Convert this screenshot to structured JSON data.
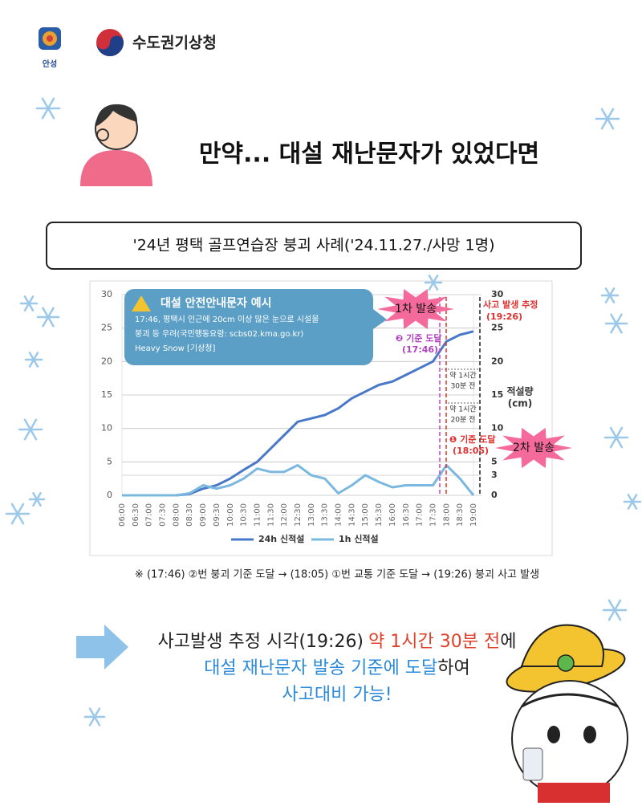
{
  "header": {
    "city_logo": "안성",
    "agency": "수도권기상청"
  },
  "title": "만약... 대설 재난문자가 있었다면",
  "case_title": "'24년 평택 골프연습장 붕괴 사례('24.11.27./사망 1명)",
  "chart_data": {
    "type": "line",
    "categories": [
      "06:00",
      "06:30",
      "07:00",
      "07:30",
      "08:00",
      "08:30",
      "09:00",
      "09:30",
      "10:00",
      "10:30",
      "11:00",
      "11:30",
      "12:00",
      "12:30",
      "13:00",
      "13:30",
      "14:00",
      "14:30",
      "15:00",
      "15:30",
      "16:00",
      "16:30",
      "17:00",
      "17:30",
      "18:00",
      "18:30",
      "19:00"
    ],
    "series": [
      {
        "name": "24h 신적설",
        "color": "#4a78c8",
        "values": [
          0,
          0,
          0,
          0,
          0,
          0.2,
          1,
          1.5,
          2.5,
          3.8,
          5,
          7,
          9,
          11,
          11.5,
          12,
          13,
          14.5,
          15.5,
          16.5,
          17,
          18,
          19,
          20,
          23,
          24,
          24.5
        ]
      },
      {
        "name": "1h 신적설",
        "color": "#7ab8e0",
        "values": [
          0,
          0,
          0,
          0,
          0,
          0.3,
          1.5,
          1,
          1.5,
          2.5,
          4,
          3.5,
          3.5,
          4.5,
          3,
          2.5,
          0.3,
          1.5,
          3,
          2,
          1.2,
          1.5,
          1.5,
          1.5,
          4.5,
          2.5,
          0
        ]
      }
    ],
    "ylim": [
      0,
      30
    ],
    "yticks": [
      0,
      5,
      10,
      15,
      20,
      25,
      30
    ],
    "y2lim": [
      0,
      30
    ],
    "y2ticks": [
      0,
      3,
      5,
      10,
      15,
      20,
      25,
      30
    ],
    "y2_label": [
      "적설량",
      "(cm)"
    ],
    "grid": true,
    "legend": "bottom",
    "alert_box": {
      "title": "대설 안전안내문자 예시",
      "lines": [
        "17:46, 평택시 인근에 20cm 이상 많은 눈으로 시설물",
        "붕괴 등 우려(국민행동요령: scbs02.kma.go.kr)",
        "Heavy Snow [기상청]"
      ]
    },
    "annotations": {
      "send_1": "1차 발송",
      "send_2": "2차 발송",
      "threshold_2": [
        "❷ 기준 도달",
        "(17:46)"
      ],
      "threshold_1": [
        "❶ 기준 도달",
        "(18:05)"
      ],
      "accident": [
        "사고 발생 추정",
        "(19:26)"
      ],
      "gap_1": [
        "약 1시간",
        "30분 전"
      ],
      "gap_2": [
        "약 1시간",
        "20분 전"
      ]
    }
  },
  "footnote": "※ (17:46) ②번 붕괴 기준 도달 → (18:05) ①번 교통 기준 도달 → (19:26) 붕괴 사고 발생",
  "conclusion": [
    [
      {
        "text": "사고발생 추정 시각(19:26)",
        "color": "#222222"
      },
      {
        "text": "약 1시간 30분 전",
        "color": "#e0402a"
      },
      {
        "text": "에",
        "color": "#222222"
      }
    ],
    [
      {
        "text": "대설 재난문자 발송 기준에 도달",
        "color": "#2a8ad8"
      },
      {
        "text": "하여",
        "color": "#222222"
      }
    ],
    [
      {
        "text": "사고대비 가능!",
        "color": "#2a8ad8"
      }
    ]
  ]
}
